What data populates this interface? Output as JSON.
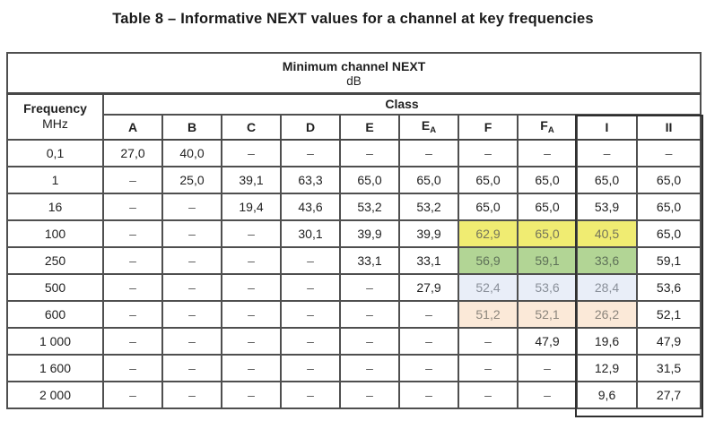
{
  "title": "Table 8 – Informative NEXT values for a channel at key frequencies",
  "table": {
    "header": {
      "title": "Minimum channel NEXT",
      "unit": "dB"
    },
    "frequency_label": "Frequency",
    "frequency_unit": "MHz",
    "class_label": "Class",
    "columns": [
      {
        "label": "A"
      },
      {
        "label": "B"
      },
      {
        "label": "C"
      },
      {
        "label": "D"
      },
      {
        "label": "E"
      },
      {
        "label": "E",
        "sub": "A"
      },
      {
        "label": "F"
      },
      {
        "label": "F",
        "sub": "A"
      },
      {
        "label": "I"
      },
      {
        "label": "II"
      }
    ],
    "dash": "–",
    "highlight_styles": {
      "yellow": {
        "bg": "#f0ec72",
        "fg": "#73735a"
      },
      "green": {
        "bg": "#b2d595",
        "fg": "#5e7158"
      },
      "blue": {
        "bg": "#e9eef8",
        "fg": "#898f99"
      },
      "peach": {
        "bg": "#fbe9d8",
        "fg": "#8b857c"
      }
    },
    "rows": [
      {
        "frequency": "0,1",
        "values": [
          "27,0",
          "40,0",
          "–",
          "–",
          "–",
          "–",
          "–",
          "–",
          "–",
          "–"
        ]
      },
      {
        "frequency": "1",
        "values": [
          "–",
          "25,0",
          "39,1",
          "63,3",
          "65,0",
          "65,0",
          "65,0",
          "65,0",
          "65,0",
          "65,0"
        ]
      },
      {
        "frequency": "16",
        "values": [
          "–",
          "–",
          "19,4",
          "43,6",
          "53,2",
          "53,2",
          "65,0",
          "65,0",
          "53,9",
          "65,0"
        ]
      },
      {
        "frequency": "100",
        "values": [
          "–",
          "–",
          "–",
          "30,1",
          "39,9",
          "39,9",
          "62,9",
          "65,0",
          "40,5",
          "65,0"
        ],
        "highlight": {
          "color": "yellow",
          "cols": [
            6,
            7,
            8
          ]
        }
      },
      {
        "frequency": "250",
        "values": [
          "–",
          "–",
          "–",
          "–",
          "33,1",
          "33,1",
          "56,9",
          "59,1",
          "33,6",
          "59,1"
        ],
        "highlight": {
          "color": "green",
          "cols": [
            6,
            7,
            8
          ]
        }
      },
      {
        "frequency": "500",
        "values": [
          "–",
          "–",
          "–",
          "–",
          "–",
          "27,9",
          "52,4",
          "53,6",
          "28,4",
          "53,6"
        ],
        "highlight": {
          "color": "blue",
          "cols": [
            6,
            7,
            8
          ]
        }
      },
      {
        "frequency": "600",
        "values": [
          "–",
          "–",
          "–",
          "–",
          "–",
          "–",
          "51,2",
          "52,1",
          "26,2",
          "52,1"
        ],
        "highlight": {
          "color": "peach",
          "cols": [
            6,
            7,
            8
          ]
        }
      },
      {
        "frequency": "1 000",
        "values": [
          "–",
          "–",
          "–",
          "–",
          "–",
          "–",
          "–",
          "47,9",
          "19,6",
          "47,9"
        ]
      },
      {
        "frequency": "1 600",
        "values": [
          "–",
          "–",
          "–",
          "–",
          "–",
          "–",
          "–",
          "–",
          "12,9",
          "31,5"
        ]
      },
      {
        "frequency": "2 000",
        "values": [
          "–",
          "–",
          "–",
          "–",
          "–",
          "–",
          "–",
          "–",
          "9,6",
          "27,7"
        ]
      }
    ]
  }
}
